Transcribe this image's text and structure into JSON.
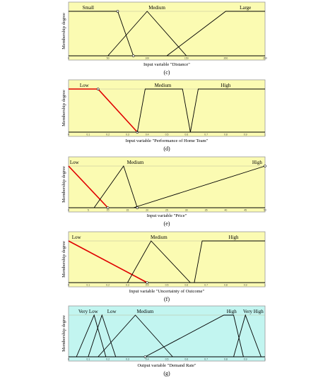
{
  "colors": {
    "panel_yellow": "#fbfbb2",
    "panel_cyan": "#c2f5f0",
    "curve": "#000000",
    "highlight": "#e00000",
    "marker_fill": "#ffffff"
  },
  "y_axis_label": "Membership degree",
  "panels": [
    {
      "letter": "(c)",
      "xlabel": "Input variable \"Distance\"",
      "bg": "panel_yellow",
      "xticks": [
        "0",
        "50",
        "100",
        "150",
        "200",
        "250"
      ],
      "mfs": [
        {
          "name": "Small",
          "points": [
            [
              0,
              1
            ],
            [
              0.25,
              1
            ],
            [
              0.33,
              0
            ]
          ],
          "highlight": false,
          "markers": [
            [
              0.25,
              1
            ],
            [
              0.33,
              0
            ]
          ]
        },
        {
          "name": "Medium",
          "points": [
            [
              0.2,
              0
            ],
            [
              0.4,
              1
            ],
            [
              0.6,
              0
            ]
          ],
          "highlight": false
        },
        {
          "name": "Large",
          "points": [
            [
              0.5,
              0
            ],
            [
              0.8,
              1
            ],
            [
              1,
              1
            ]
          ],
          "highlight": false
        }
      ]
    },
    {
      "letter": "(d)",
      "xlabel": "Input variable \"Performance of Home Team\"",
      "bg": "panel_yellow",
      "xticks": [
        "0",
        "0.1",
        "0.2",
        "0.3",
        "0.4",
        "0.5",
        "0.6",
        "0.7",
        "0.8",
        "0.9",
        "1"
      ],
      "mfs": [
        {
          "name": "Low",
          "points": [
            [
              0,
              1
            ],
            [
              0.15,
              1
            ],
            [
              0.35,
              0
            ]
          ],
          "highlight": true,
          "markers": [
            [
              0.15,
              1
            ],
            [
              0.35,
              0
            ]
          ]
        },
        {
          "name": "Medium",
          "points": [
            [
              0.35,
              0
            ],
            [
              0.39,
              1
            ],
            [
              0.58,
              1
            ],
            [
              0.62,
              0
            ]
          ],
          "highlight": false
        },
        {
          "name": "High",
          "points": [
            [
              0.62,
              0
            ],
            [
              0.66,
              1
            ],
            [
              1,
              1
            ]
          ],
          "highlight": false
        }
      ]
    },
    {
      "letter": "(e)",
      "xlabel": "Input variable \"Price\"",
      "bg": "panel_yellow",
      "xticks": [
        "0",
        "5",
        "10",
        "15",
        "20",
        "25",
        "30",
        "35",
        "40",
        "45",
        "50"
      ],
      "mfs": [
        {
          "name": "Low",
          "points": [
            [
              0,
              1
            ],
            [
              0.2,
              0
            ]
          ],
          "highlight": true,
          "markers": [
            [
              0.2,
              0
            ]
          ]
        },
        {
          "name": "Medium",
          "points": [
            [
              0.13,
              0
            ],
            [
              0.28,
              1
            ],
            [
              0.35,
              0
            ]
          ],
          "highlight": false,
          "markers": [
            [
              0.35,
              0
            ]
          ]
        },
        {
          "name": "High",
          "points": [
            [
              0.33,
              0
            ],
            [
              1,
              1
            ]
          ],
          "highlight": false,
          "markers": [
            [
              1,
              1
            ]
          ]
        }
      ]
    },
    {
      "letter": "(f)",
      "xlabel": "Input variable \"Uncertainty of Outcome\"",
      "bg": "panel_yellow",
      "xticks": [
        "0",
        "0.1",
        "0.2",
        "0.3",
        "0.4",
        "0.5",
        "0.6",
        "0.7",
        "0.8",
        "0.9",
        "1"
      ],
      "mfs": [
        {
          "name": "Low",
          "points": [
            [
              0,
              1
            ],
            [
              0.4,
              0
            ]
          ],
          "highlight": true,
          "markers": [
            [
              0.4,
              0
            ]
          ]
        },
        {
          "name": "Medium",
          "points": [
            [
              0.3,
              0
            ],
            [
              0.42,
              1
            ],
            [
              0.62,
              0
            ]
          ],
          "highlight": false
        },
        {
          "name": "High",
          "points": [
            [
              0.64,
              0
            ],
            [
              0.68,
              1
            ],
            [
              1,
              1
            ]
          ],
          "highlight": false
        }
      ]
    },
    {
      "letter": "(g)",
      "xlabel": "Output variable \"Demand Rate\"",
      "bg": "panel_cyan",
      "xticks": [
        "0",
        "0.1",
        "0.2",
        "0.3",
        "0.4",
        "0.5",
        "0.6",
        "0.7",
        "0.8",
        "0.9",
        "1"
      ],
      "mfs": [
        {
          "name": "Very Low",
          "points": [
            [
              0.04,
              0
            ],
            [
              0.13,
              1
            ],
            [
              0.19,
              0
            ]
          ],
          "highlight": false
        },
        {
          "name": "Low",
          "points": [
            [
              0.1,
              0
            ],
            [
              0.17,
              1
            ],
            [
              0.24,
              0
            ]
          ],
          "highlight": false
        },
        {
          "name": "Medium",
          "points": [
            [
              0.15,
              0
            ],
            [
              0.34,
              1
            ],
            [
              0.53,
              0
            ]
          ],
          "highlight": false
        },
        {
          "name": "High",
          "points": [
            [
              0.39,
              0
            ],
            [
              0.79,
              1
            ],
            [
              0.84,
              1
            ],
            [
              0.89,
              0
            ]
          ],
          "highlight": false,
          "markers": [
            [
              0.39,
              0
            ]
          ]
        },
        {
          "name": "Very High",
          "points": [
            [
              0.84,
              0
            ],
            [
              0.9,
              1
            ],
            [
              0.98,
              0
            ]
          ],
          "highlight": false
        }
      ]
    }
  ]
}
